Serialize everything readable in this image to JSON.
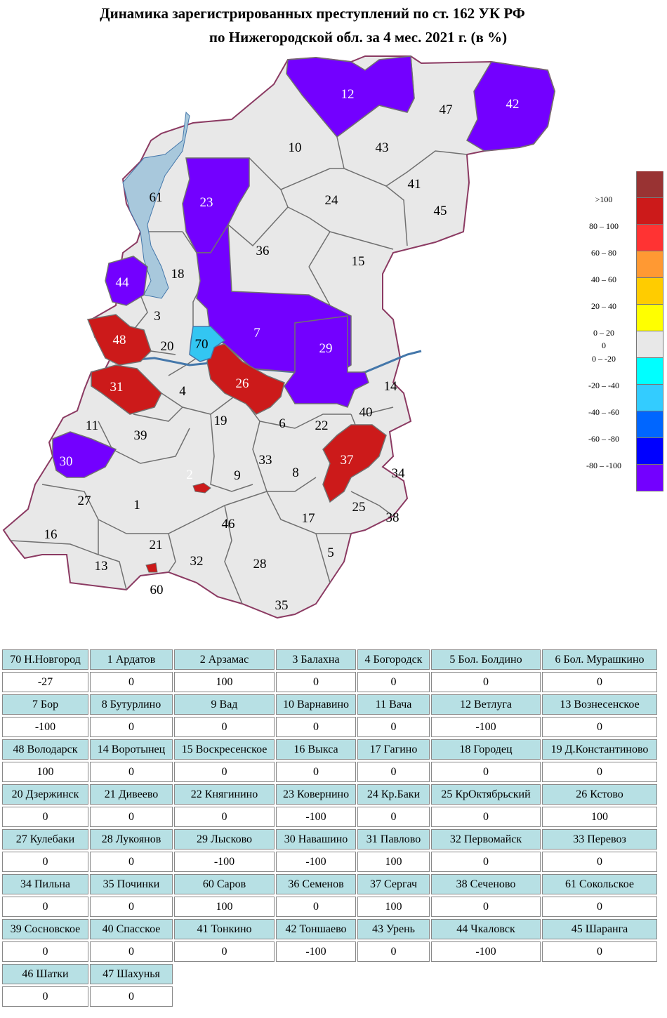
{
  "title": {
    "line1": "Динамика зарегистрированных преступлений по ст. 162 УК РФ",
    "line2": "по Нижегородской обл. за 4 мес. 2021 г. (в %)"
  },
  "colors": {
    "region_default": "#e8e8e8",
    "region_border": "#707070",
    "outer_border": "#8b3a62",
    "water": "#a8c8dc",
    "purple": "#7300ff",
    "red": "#cc1a1a",
    "lightblue": "#33c6f2"
  },
  "legend": {
    "items": [
      {
        "label": "",
        "color": "#993333"
      },
      {
        "label": ">100",
        "color": "#cc1a1a"
      },
      {
        "label": "80 – 100",
        "color": "#ff3333"
      },
      {
        "label": "60 – 80",
        "color": "#ff9933"
      },
      {
        "label": "40 – 60",
        "color": "#ffcc00"
      },
      {
        "label": "20 – 40",
        "color": "#ffff00"
      },
      {
        "label": "0 – 20",
        "color": "#e8e8e8"
      },
      {
        "label": "0",
        "color": ""
      },
      {
        "label": "0 – -20",
        "color": "#00ffff"
      },
      {
        "label": "-20 – -40",
        "color": "#33ccff"
      },
      {
        "label": "-40 – -60",
        "color": "#0066ff"
      },
      {
        "label": "-60 – -80",
        "color": "#0000ff"
      },
      {
        "label": "-80 – -100",
        "color": "#7300ff"
      }
    ]
  },
  "map_labels": [
    {
      "text": "12",
      "white": true
    },
    {
      "text": "47",
      "white": false
    },
    {
      "text": "42",
      "white": true
    },
    {
      "text": "10",
      "white": false
    },
    {
      "text": "43",
      "white": false
    },
    {
      "text": "61",
      "white": false
    },
    {
      "text": "23",
      "white": true
    },
    {
      "text": "24",
      "white": false
    },
    {
      "text": "41",
      "white": false
    },
    {
      "text": "45",
      "white": false
    },
    {
      "text": "36",
      "white": false
    },
    {
      "text": "15",
      "white": false
    },
    {
      "text": "44",
      "white": true
    },
    {
      "text": "18",
      "white": false
    },
    {
      "text": "3",
      "white": false
    },
    {
      "text": "7",
      "white": true
    },
    {
      "text": "48",
      "white": true
    },
    {
      "text": "20",
      "white": false
    },
    {
      "text": "70",
      "white": false
    },
    {
      "text": "29",
      "white": true
    },
    {
      "text": "26",
      "white": true
    },
    {
      "text": "14",
      "white": false
    },
    {
      "text": "31",
      "white": true
    },
    {
      "text": "4",
      "white": false
    },
    {
      "text": "40",
      "white": false
    },
    {
      "text": "19",
      "white": false
    },
    {
      "text": "6",
      "white": false
    },
    {
      "text": "22",
      "white": false
    },
    {
      "text": "11",
      "white": false
    },
    {
      "text": "39",
      "white": false
    },
    {
      "text": "33",
      "white": false
    },
    {
      "text": "37",
      "white": true
    },
    {
      "text": "30",
      "white": true
    },
    {
      "text": "2",
      "white": true
    },
    {
      "text": "9",
      "white": false
    },
    {
      "text": "8",
      "white": false
    },
    {
      "text": "34",
      "white": false
    },
    {
      "text": "27",
      "white": false
    },
    {
      "text": "1",
      "white": false
    },
    {
      "text": "25",
      "white": false
    },
    {
      "text": "46",
      "white": false
    },
    {
      "text": "17",
      "white": false
    },
    {
      "text": "38",
      "white": false
    },
    {
      "text": "16",
      "white": false
    },
    {
      "text": "21",
      "white": false
    },
    {
      "text": "5",
      "white": false
    },
    {
      "text": "13",
      "white": false
    },
    {
      "text": "32",
      "white": false
    },
    {
      "text": "28",
      "white": false
    },
    {
      "text": "60",
      "white": false
    },
    {
      "text": "35",
      "white": false
    }
  ],
  "table_rows": [
    [
      {
        "name": "70 Н.Новгород",
        "value": "-27"
      },
      {
        "name": "1 Ардатов",
        "value": "0"
      },
      {
        "name": "2 Арзамас",
        "value": "100"
      },
      {
        "name": "3 Балахна",
        "value": "0"
      },
      {
        "name": "4 Богородск",
        "value": "0"
      },
      {
        "name": "5 Бол. Болдино",
        "value": "0"
      },
      {
        "name": "6 Бол. Мурашкино",
        "value": "0"
      }
    ],
    [
      {
        "name": "7 Бор",
        "value": "-100"
      },
      {
        "name": "8 Бутурлино",
        "value": "0"
      },
      {
        "name": "9 Вад",
        "value": "0"
      },
      {
        "name": "10 Варнавино",
        "value": "0"
      },
      {
        "name": "11 Вача",
        "value": "0"
      },
      {
        "name": "12 Ветлуга",
        "value": "-100"
      },
      {
        "name": "13 Вознесенское",
        "value": "0"
      }
    ],
    [
      {
        "name": "48 Володарск",
        "value": "100"
      },
      {
        "name": "14 Воротынец",
        "value": "0"
      },
      {
        "name": "15 Воскресенское",
        "value": "0"
      },
      {
        "name": "16 Выкса",
        "value": "0"
      },
      {
        "name": "17 Гагино",
        "value": "0"
      },
      {
        "name": "18 Городец",
        "value": "0"
      },
      {
        "name": "19 Д.Константиново",
        "value": "0"
      }
    ],
    [
      {
        "name": "20 Дзержинск",
        "value": "0"
      },
      {
        "name": "21 Дивеево",
        "value": "0"
      },
      {
        "name": "22 Княгинино",
        "value": "0"
      },
      {
        "name": "23 Ковернино",
        "value": "-100"
      },
      {
        "name": "24 Кр.Баки",
        "value": "0"
      },
      {
        "name": "25 КрОктябрьский",
        "value": "0"
      },
      {
        "name": "26 Кстово",
        "value": "100"
      }
    ],
    [
      {
        "name": "27 Кулебаки",
        "value": "0"
      },
      {
        "name": "28 Лукоянов",
        "value": "0"
      },
      {
        "name": "29 Лысково",
        "value": "-100"
      },
      {
        "name": "30 Навашино",
        "value": "-100"
      },
      {
        "name": "31 Павлово",
        "value": "100"
      },
      {
        "name": "32 Первомайск",
        "value": "0"
      },
      {
        "name": "33 Перевоз",
        "value": "0"
      }
    ],
    [
      {
        "name": "34 Пильна",
        "value": "0"
      },
      {
        "name": "35 Починки",
        "value": "0"
      },
      {
        "name": "60 Саров",
        "value": "100"
      },
      {
        "name": "36 Семенов",
        "value": "0"
      },
      {
        "name": "37 Сергач",
        "value": "100"
      },
      {
        "name": "38 Сеченово",
        "value": "0"
      },
      {
        "name": "61 Сокольское",
        "value": "0"
      }
    ],
    [
      {
        "name": "39 Сосновское",
        "value": "0"
      },
      {
        "name": "40 Спасское",
        "value": "0"
      },
      {
        "name": "41 Тонкино",
        "value": "0"
      },
      {
        "name": "42 Тоншаево",
        "value": "-100"
      },
      {
        "name": "43 Урень",
        "value": "0"
      },
      {
        "name": "44 Чкаловск",
        "value": "-100"
      },
      {
        "name": "45 Шаранга",
        "value": "0"
      }
    ],
    [
      {
        "name": "46 Шатки",
        "value": "0"
      },
      {
        "name": "47 Шахунья",
        "value": "0"
      }
    ]
  ]
}
